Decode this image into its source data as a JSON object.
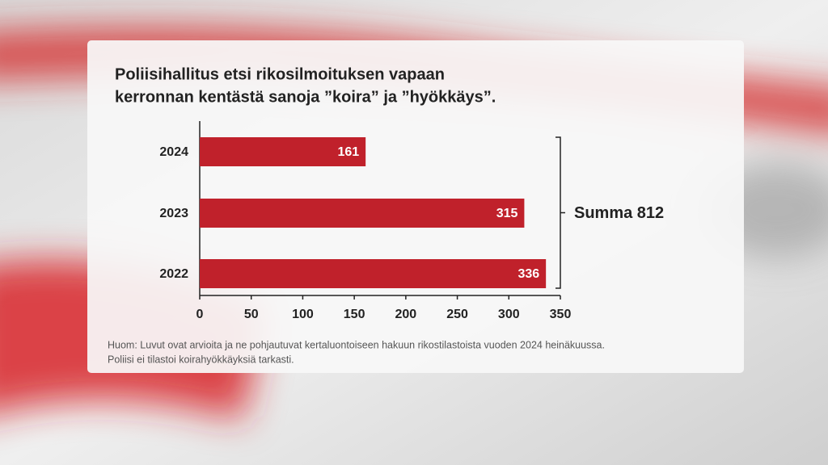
{
  "chart_data": {
    "type": "hbar",
    "title": [
      "Poliisihallitus etsi rikosilmoituksen vapaan",
      "kerronnan kentästä sanoja ”koira” ja ”hyökkäys”."
    ],
    "categories": [
      "2024",
      "2023",
      "2022"
    ],
    "values": [
      161,
      315,
      336
    ],
    "color": "#c0212b",
    "xlim": [
      0,
      350
    ],
    "xticks": [
      0,
      50,
      100,
      150,
      200,
      250,
      300,
      350
    ],
    "annotation": "Summa 812",
    "note": [
      "Huom: Luvut ovat arvioita ja ne pohjautuvat kertaluontoiseen hakuun rikostilastoista vuoden 2024 heinäkuussa.",
      "Poliisi ei tilastoi koirahyökkäyksiä tarkasti."
    ]
  }
}
